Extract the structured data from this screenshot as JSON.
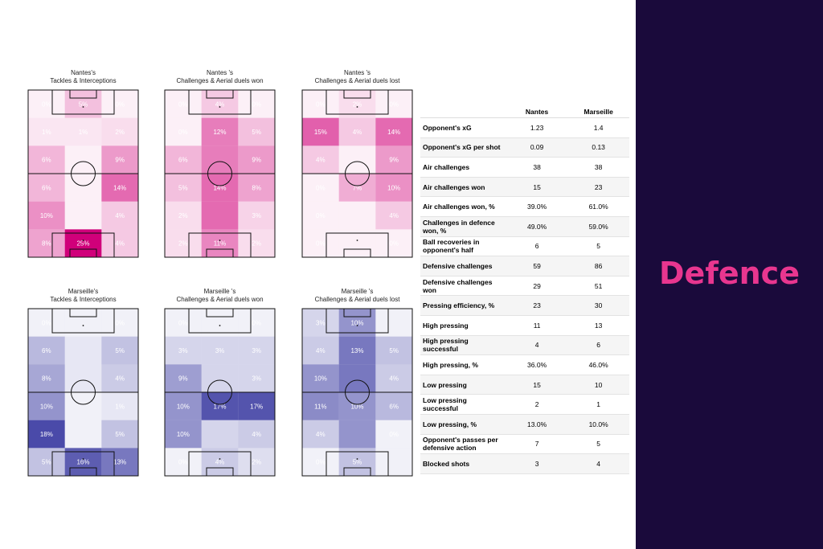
{
  "banner": {
    "title": "Defence",
    "bg_color": "#1a0a3b",
    "accent_color": "#e8368f"
  },
  "chart_data": [
    {
      "type": "heatmap",
      "team": "Nantes",
      "title_line1": "Nantes's",
      "title_line2": "Tackles & Interceptions",
      "color": "#d0007a",
      "cells": [
        [
          "0%",
          "5%",
          "0%"
        ],
        [
          "1%",
          "1%",
          "2%"
        ],
        [
          "6%",
          "",
          "9%"
        ],
        [
          "6%",
          "",
          "14%"
        ],
        [
          "10%",
          "",
          "4%"
        ],
        [
          "8%",
          "25%",
          "4%"
        ]
      ],
      "values": [
        [
          0,
          5,
          0
        ],
        [
          1,
          1,
          2
        ],
        [
          6,
          0,
          9
        ],
        [
          6,
          0,
          14
        ],
        [
          10,
          0,
          4
        ],
        [
          8,
          25,
          4
        ]
      ]
    },
    {
      "type": "heatmap",
      "team": "Nantes",
      "title_line1": "Nantes 's",
      "title_line2": "Challenges & Aerial duels won",
      "color": "#d0007a",
      "cells": [
        [
          "0%",
          "4%",
          "0%"
        ],
        [
          "0%",
          "12%",
          "5%"
        ],
        [
          "6%",
          "",
          "9%"
        ],
        [
          "5%",
          "14%",
          "8%"
        ],
        [
          "2%",
          "",
          "3%"
        ],
        [
          "2%",
          "11%",
          "2%"
        ]
      ],
      "values": [
        [
          0,
          4,
          0
        ],
        [
          0,
          12,
          5
        ],
        [
          6,
          12,
          9
        ],
        [
          5,
          14,
          8
        ],
        [
          2,
          14,
          3
        ],
        [
          2,
          11,
          2
        ]
      ]
    },
    {
      "type": "heatmap",
      "team": "Nantes",
      "title_line1": "Nantes 's",
      "title_line2": "Challenges & Aerial duels lost",
      "color": "#d0007a",
      "cells": [
        [
          "0%",
          "2%",
          "0%"
        ],
        [
          "15%",
          "4%",
          "14%"
        ],
        [
          "4%",
          "",
          "9%"
        ],
        [
          "0%",
          "7%",
          "10%"
        ],
        [
          "0%",
          "",
          "4%"
        ],
        [
          "0%",
          "",
          "0%"
        ]
      ],
      "values": [
        [
          0,
          2,
          0
        ],
        [
          15,
          4,
          14
        ],
        [
          4,
          0,
          9
        ],
        [
          0,
          7,
          10
        ],
        [
          0,
          0,
          4
        ],
        [
          0,
          0,
          0
        ]
      ]
    },
    {
      "type": "heatmap",
      "team": "Marseille",
      "title_line1": "Marseille's",
      "title_line2": "Tackles & Interceptions",
      "color": "#0a0a8a",
      "cells": [
        [
          "0%",
          "",
          "0%"
        ],
        [
          "6%",
          "",
          "5%"
        ],
        [
          "8%",
          "",
          "4%"
        ],
        [
          "10%",
          "",
          "1%"
        ],
        [
          "18%",
          "",
          "5%"
        ],
        [
          "5%",
          "16%",
          "13%"
        ]
      ],
      "values": [
        [
          0,
          0,
          0
        ],
        [
          6,
          1,
          5
        ],
        [
          8,
          1,
          4
        ],
        [
          10,
          0,
          1
        ],
        [
          18,
          0,
          5
        ],
        [
          5,
          16,
          13
        ]
      ]
    },
    {
      "type": "heatmap",
      "team": "Marseille",
      "title_line1": "Marseille 's",
      "title_line2": "Challenges & Aerial duels won",
      "color": "#0a0a8a",
      "cells": [
        [
          "0%",
          "",
          "0%"
        ],
        [
          "3%",
          "3%",
          "3%"
        ],
        [
          "9%",
          "",
          "3%"
        ],
        [
          "10%",
          "17%",
          "17%"
        ],
        [
          "10%",
          "",
          "4%"
        ],
        [
          "0%",
          "4%",
          "2%"
        ]
      ],
      "values": [
        [
          0,
          0,
          0
        ],
        [
          3,
          3,
          3
        ],
        [
          9,
          3,
          3
        ],
        [
          10,
          17,
          17
        ],
        [
          10,
          3,
          4
        ],
        [
          0,
          4,
          2
        ]
      ]
    },
    {
      "type": "heatmap",
      "team": "Marseille",
      "title_line1": "Marseille 's",
      "title_line2": "Challenges & Aerial duels lost",
      "color": "#0a0a8a",
      "cells": [
        [
          "3%",
          "10%",
          ""
        ],
        [
          "4%",
          "13%",
          "5%"
        ],
        [
          "10%",
          "",
          "4%"
        ],
        [
          "11%",
          "10%",
          "6%"
        ],
        [
          "4%",
          "",
          "0%"
        ],
        [
          "0%",
          "5%",
          ""
        ]
      ],
      "values": [
        [
          3,
          10,
          0
        ],
        [
          4,
          13,
          5
        ],
        [
          10,
          13,
          4
        ],
        [
          11,
          10,
          6
        ],
        [
          4,
          10,
          0
        ],
        [
          0,
          5,
          0
        ]
      ]
    }
  ],
  "stats": {
    "headers": [
      "",
      "Nantes",
      "Marseille"
    ],
    "rows": [
      [
        "Opponent's xG",
        "1.23",
        "1.4"
      ],
      [
        "Opponent's xG per shot",
        "0.09",
        "0.13"
      ],
      [
        "Air challenges",
        "38",
        "38"
      ],
      [
        "Air challenges won",
        "15",
        "23"
      ],
      [
        "Air challenges won, %",
        "39.0%",
        "61.0%"
      ],
      [
        "Challenges in defence won, %",
        "49.0%",
        "59.0%"
      ],
      [
        "Ball recoveries in opponent's half",
        "6",
        "5"
      ],
      [
        "Defensive challenges",
        "59",
        "86"
      ],
      [
        "Defensive challenges won",
        "29",
        "51"
      ],
      [
        "Pressing efficiency, %",
        "23",
        "30"
      ],
      [
        "High pressing",
        "11",
        "13"
      ],
      [
        "High pressing successful",
        "4",
        "6"
      ],
      [
        "High pressing, %",
        "36.0%",
        "46.0%"
      ],
      [
        "Low pressing",
        "15",
        "10"
      ],
      [
        "Low pressing successful",
        "2",
        "1"
      ],
      [
        "Low pressing, %",
        "13.0%",
        "10.0%"
      ],
      [
        "Opponent's passes per defensive action",
        "7",
        "5"
      ],
      [
        "Blocked shots",
        "3",
        "4"
      ]
    ]
  }
}
